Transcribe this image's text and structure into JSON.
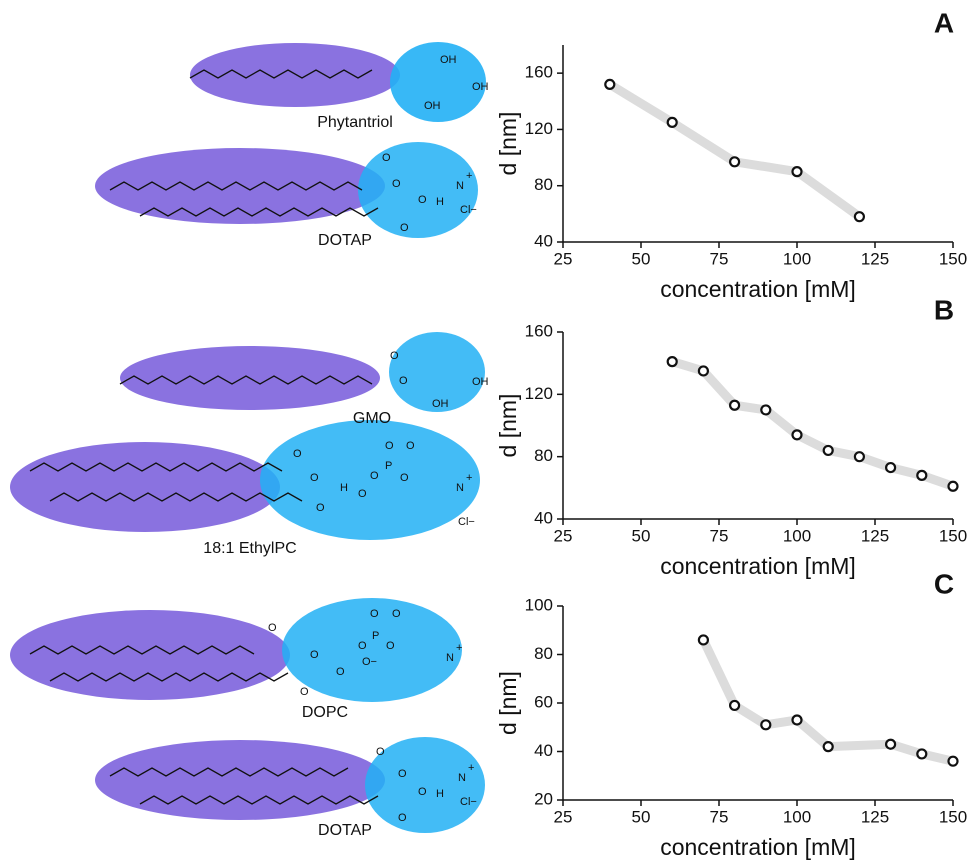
{
  "figure": {
    "molecules": [
      "Phytantriol",
      "DOTAP",
      "GMO",
      "18:1 EthylPC",
      "DOPC",
      "DOTAP"
    ],
    "atoms": {
      "OH": "OH",
      "O": "O",
      "N": "N",
      "plus": "+",
      "Cl": "Cl−",
      "H": "H",
      "P": "P",
      "Ominus": "O−"
    }
  },
  "chart_data": [
    {
      "type": "scatter",
      "panel": "A",
      "xlabel": "concentration [mM]",
      "ylabel": "d [nm]",
      "x": [
        40,
        60,
        80,
        100,
        120
      ],
      "values": [
        152,
        125,
        97,
        90,
        58
      ],
      "xlim": [
        25,
        150
      ],
      "xticks": [
        25,
        50,
        75,
        100,
        125,
        150
      ],
      "ylim": [
        40,
        180
      ],
      "yticks": [
        40,
        80,
        120,
        160
      ]
    },
    {
      "type": "scatter",
      "panel": "B",
      "xlabel": "concentration [mM]",
      "ylabel": "d [nm]",
      "x": [
        60,
        70,
        80,
        90,
        100,
        110,
        120,
        130,
        140,
        150
      ],
      "values": [
        141,
        135,
        113,
        110,
        94,
        84,
        80,
        73,
        68,
        61
      ],
      "xlim": [
        25,
        150
      ],
      "xticks": [
        25,
        50,
        75,
        100,
        125,
        150
      ],
      "ylim": [
        40,
        160
      ],
      "yticks": [
        40,
        80,
        120,
        160
      ]
    },
    {
      "type": "scatter",
      "panel": "C",
      "xlabel": "concentration [mM]",
      "ylabel": "d [nm]",
      "x": [
        70,
        80,
        90,
        100,
        110,
        130,
        140,
        150
      ],
      "values": [
        86,
        59,
        51,
        53,
        42,
        43,
        39,
        36
      ],
      "xlim": [
        25,
        150
      ],
      "xticks": [
        25,
        50,
        75,
        100,
        125,
        150
      ],
      "ylim": [
        20,
        100
      ],
      "yticks": [
        20,
        40,
        60,
        80,
        100
      ]
    }
  ]
}
